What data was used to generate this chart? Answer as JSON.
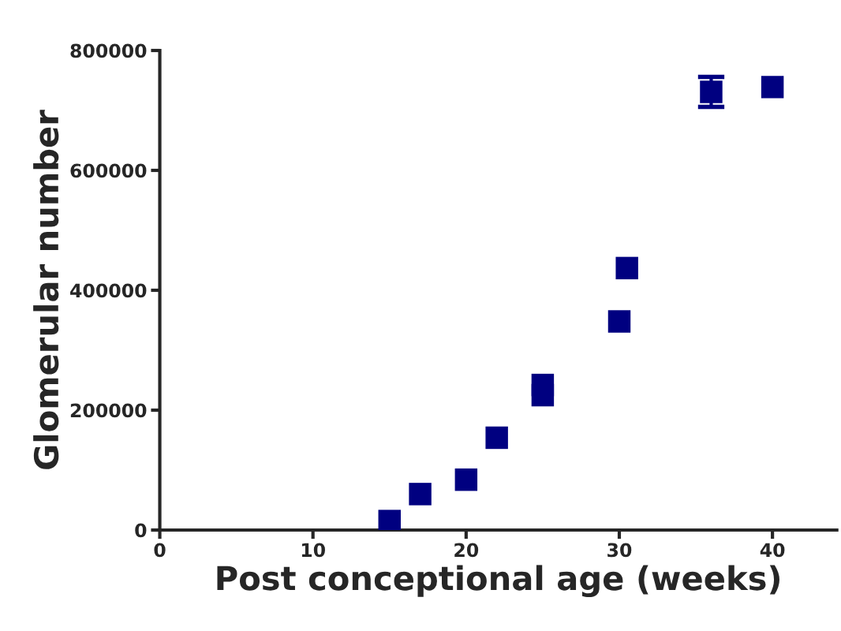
{
  "chart_data": {
    "type": "scatter",
    "xlabel": "Post conceptional age (weeks)",
    "ylabel": "Glomerular number",
    "x": [
      15,
      17,
      20,
      22,
      25,
      25,
      30,
      30.5,
      36,
      40
    ],
    "series": [
      {
        "color": "#000080",
        "values": [
          15000,
          60000,
          84000,
          154000,
          242000,
          225000,
          348000,
          437000,
          731000,
          739000
        ],
        "errors": [
          null,
          null,
          null,
          null,
          null,
          null,
          null,
          null,
          25000,
          null
        ]
      }
    ],
    "xlim": [
      0,
      44.2
    ],
    "xticks": [
      0,
      10,
      20,
      30,
      40
    ],
    "ylim": [
      0,
      800000
    ],
    "yticks": [
      0,
      200000,
      400000,
      600000,
      800000
    ],
    "marker": "square",
    "grid": false,
    "legend": false
  }
}
